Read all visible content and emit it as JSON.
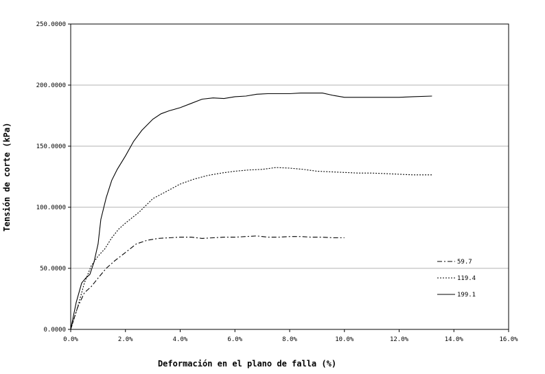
{
  "chart_data": {
    "type": "line",
    "title": "",
    "xlabel": "Deformación en el plano de falla (%)",
    "ylabel": "Tensión de corte (kPa)",
    "xlim": [
      0,
      16
    ],
    "ylim": [
      0,
      250
    ],
    "x_ticks": [
      0,
      2,
      4,
      6,
      8,
      10,
      12,
      14,
      16
    ],
    "x_tick_labels": [
      "0.0%",
      "2.0%",
      "4.0%",
      "6.0%",
      "8.0%",
      "10.0%",
      "12.0%",
      "14.0%",
      "16.0%"
    ],
    "y_ticks": [
      0,
      50,
      100,
      150,
      200,
      250
    ],
    "y_tick_labels": [
      "0.0000",
      "50.0000",
      "100.0000",
      "150.0000",
      "200.0000",
      "250.0000"
    ],
    "grid": "horizontal",
    "legend_position": "right",
    "series": [
      {
        "name": "59.7",
        "dash": "dash-dot",
        "points": [
          [
            0,
            0
          ],
          [
            0.25,
            18
          ],
          [
            0.5,
            30
          ],
          [
            0.75,
            35
          ],
          [
            1.0,
            42
          ],
          [
            1.3,
            50
          ],
          [
            1.6,
            56
          ],
          [
            2.0,
            63
          ],
          [
            2.4,
            70
          ],
          [
            2.8,
            73
          ],
          [
            3.2,
            74.5
          ],
          [
            3.6,
            75
          ],
          [
            4.0,
            75.5
          ],
          [
            4.4,
            75.5
          ],
          [
            4.8,
            74.5
          ],
          [
            5.2,
            75
          ],
          [
            5.6,
            75.5
          ],
          [
            6.0,
            75.5
          ],
          [
            6.4,
            76
          ],
          [
            6.8,
            76.5
          ],
          [
            7.2,
            75.5
          ],
          [
            7.6,
            75.5
          ],
          [
            8.0,
            76
          ],
          [
            8.4,
            76
          ],
          [
            8.8,
            75.5
          ],
          [
            9.2,
            75.5
          ],
          [
            9.6,
            75
          ],
          [
            10.0,
            75
          ]
        ]
      },
      {
        "name": "119.4",
        "dash": "dotted",
        "points": [
          [
            0,
            0
          ],
          [
            0.25,
            18
          ],
          [
            0.5,
            38
          ],
          [
            0.75,
            52
          ],
          [
            1.0,
            60
          ],
          [
            1.25,
            66
          ],
          [
            1.5,
            75
          ],
          [
            1.75,
            82
          ],
          [
            2.0,
            87
          ],
          [
            2.5,
            96
          ],
          [
            3.0,
            107
          ],
          [
            3.5,
            113
          ],
          [
            4.0,
            119
          ],
          [
            4.5,
            123
          ],
          [
            5.0,
            126
          ],
          [
            5.5,
            128
          ],
          [
            6.0,
            129.5
          ],
          [
            6.5,
            130.5
          ],
          [
            7.0,
            131
          ],
          [
            7.5,
            132.5
          ],
          [
            8.0,
            132
          ],
          [
            8.5,
            131
          ],
          [
            9.0,
            129.5
          ],
          [
            9.5,
            129
          ],
          [
            10.0,
            128.5
          ],
          [
            10.5,
            128
          ],
          [
            11.0,
            128
          ],
          [
            11.5,
            127.5
          ],
          [
            12.0,
            127
          ],
          [
            12.5,
            126.5
          ],
          [
            13.2,
            126.5
          ]
        ]
      },
      {
        "name": "199.1",
        "dash": "solid",
        "points": [
          [
            0,
            0
          ],
          [
            0.2,
            22
          ],
          [
            0.4,
            38
          ],
          [
            0.55,
            42
          ],
          [
            0.7,
            45
          ],
          [
            0.85,
            55
          ],
          [
            1.0,
            70
          ],
          [
            1.1,
            90
          ],
          [
            1.3,
            108
          ],
          [
            1.5,
            122
          ],
          [
            1.7,
            131
          ],
          [
            2.0,
            142
          ],
          [
            2.3,
            154
          ],
          [
            2.6,
            163
          ],
          [
            3.0,
            172
          ],
          [
            3.3,
            176.5
          ],
          [
            3.6,
            179
          ],
          [
            4.0,
            181.5
          ],
          [
            4.4,
            185
          ],
          [
            4.8,
            188.5
          ],
          [
            5.2,
            189.5
          ],
          [
            5.6,
            189
          ],
          [
            6.0,
            190.5
          ],
          [
            6.4,
            191
          ],
          [
            6.8,
            192.5
          ],
          [
            7.2,
            193
          ],
          [
            7.6,
            193
          ],
          [
            8.0,
            193
          ],
          [
            8.4,
            193.5
          ],
          [
            8.8,
            193.5
          ],
          [
            9.2,
            193.5
          ],
          [
            9.6,
            191.5
          ],
          [
            10.0,
            190
          ],
          [
            10.5,
            190
          ],
          [
            11.0,
            190
          ],
          [
            11.5,
            190
          ],
          [
            12.0,
            190
          ],
          [
            12.5,
            190.5
          ],
          [
            13.2,
            191
          ]
        ]
      }
    ]
  }
}
